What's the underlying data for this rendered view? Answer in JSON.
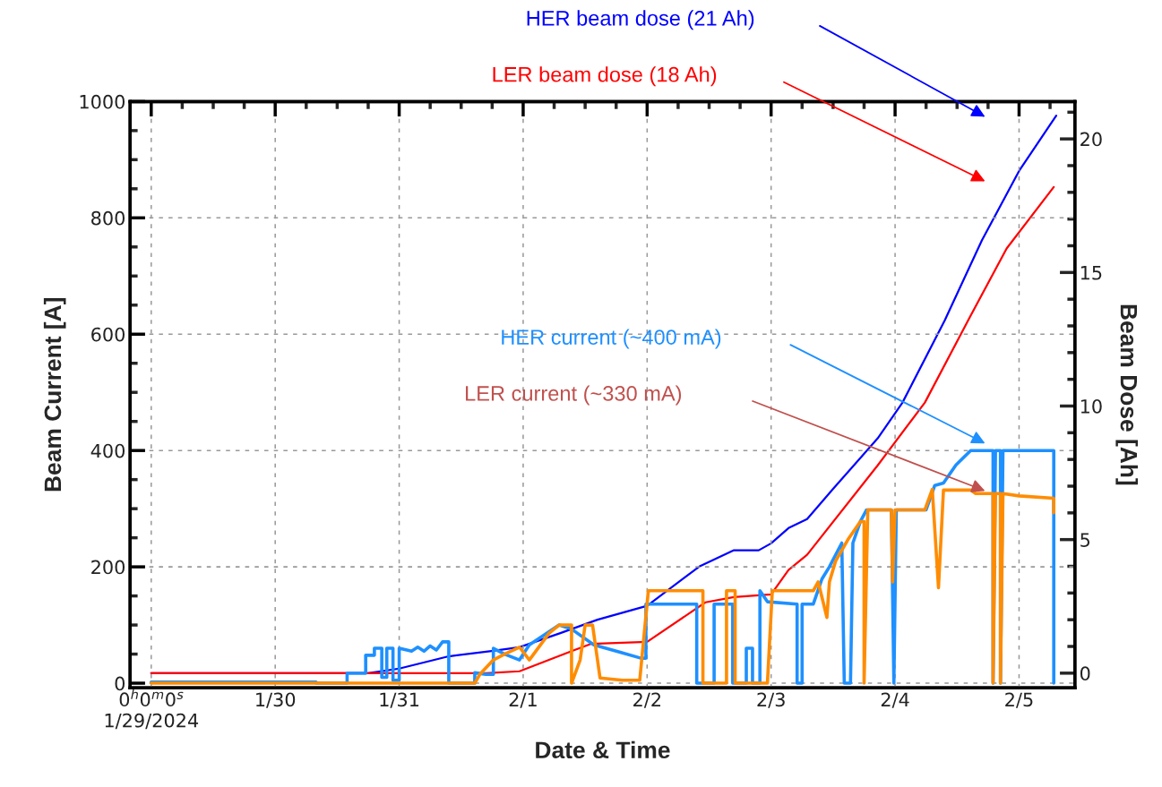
{
  "chart_data": {
    "type": "line",
    "xlabel": "Date & Time",
    "ylabel": "Beam Current [A]",
    "y2label": "Beam Dose [Ah]",
    "xlim": [
      "2024-01-28T19:55",
      "2024-02-05T10:48"
    ],
    "ylim": [
      -8,
      1000
    ],
    "y2lim": [
      -0.55,
      21.4
    ],
    "xticks": [
      {
        "value": "2024-01-29",
        "label": "0$^{h}$0$^{m}$0$^{s}$\n1/29/2024"
      },
      {
        "value": "2024-01-30",
        "label": "1/30"
      },
      {
        "value": "2024-01-31",
        "label": "1/31"
      },
      {
        "value": "2024-02-01",
        "label": "2/1"
      },
      {
        "value": "2024-02-02",
        "label": "2/2"
      },
      {
        "value": "2024-02-03",
        "label": "2/3"
      },
      {
        "value": "2024-02-04",
        "label": "2/4"
      },
      {
        "value": "2024-02-05",
        "label": "2/5"
      }
    ],
    "yticks": [
      0,
      200,
      400,
      600,
      800,
      1000
    ],
    "y2ticks": [
      0,
      5,
      10,
      15,
      20
    ],
    "grid": true,
    "series": [
      {
        "color": "#0000ff",
        "axis": "y2",
        "x": [
          "2024-01-29T00:00",
          "2024-01-30T18:00",
          "2024-01-31T00:00",
          "2024-01-31T09:36",
          "2024-01-31T18:14",
          "2024-01-31T23:17",
          "2024-02-01T07:12",
          "2024-02-01T14:24",
          "2024-02-02T00:00",
          "2024-02-02T10:05",
          "2024-02-02T16:48",
          "2024-02-02T21:36",
          "2024-02-03T00:00",
          "2024-02-03T03:22",
          "2024-02-03T06:58",
          "2024-02-03T12:00",
          "2024-02-03T20:38",
          "2024-02-04T01:26",
          "2024-02-04T09:36",
          "2024-02-04T16:48",
          "2024-02-05T00:00",
          "2024-02-05T07:12"
        ],
        "values": [
          0,
          0,
          0.17,
          0.63,
          0.84,
          0.97,
          1.5,
          2.0,
          2.52,
          3.99,
          4.6,
          4.6,
          4.86,
          5.43,
          5.77,
          6.9,
          8.79,
          10.13,
          13.2,
          16.2,
          18.8,
          20.87
        ]
      },
      {
        "color": "#ff0000",
        "axis": "y2",
        "x": [
          "2024-01-29T00:00",
          "2024-01-31T16:48",
          "2024-01-31T23:17",
          "2024-02-01T09:36",
          "2024-02-01T13:12",
          "2024-02-02T00:00",
          "2024-02-02T11:17",
          "2024-02-02T16:48",
          "2024-02-03T00:00",
          "2024-02-03T03:22",
          "2024-02-03T06:58",
          "2024-02-03T20:38",
          "2024-02-04T05:46",
          "2024-02-04T14:24",
          "2024-02-04T21:36",
          "2024-02-05T06:43"
        ],
        "values": [
          0,
          0,
          0.07,
          0.84,
          1.1,
          1.17,
          2.65,
          2.85,
          2.95,
          3.86,
          4.43,
          7.78,
          10.13,
          13.3,
          15.9,
          18.2
        ]
      },
      {
        "color": "#1e90ff",
        "x": [
          "2024-01-29T00:00",
          "2024-01-30T07:55",
          "2024-01-30T07:55",
          "2024-01-30T13:55",
          "2024-01-30T13:55",
          "2024-01-30T17:31",
          "2024-01-30T17:31",
          "2024-01-30T19:12",
          "2024-01-30T19:12",
          "2024-01-30T20:38",
          "2024-01-30T20:38",
          "2024-01-30T21:36",
          "2024-01-30T21:36",
          "2024-01-30T22:48",
          "2024-01-30T22:48",
          "2024-01-31T00:00",
          "2024-01-31T00:00",
          "2024-01-31T02:24",
          "2024-01-31T03:36",
          "2024-01-31T04:48",
          "2024-01-31T06:00",
          "2024-01-31T07:12",
          "2024-01-31T08:24",
          "2024-01-31T09:36",
          "2024-01-31T09:36",
          "2024-01-31T14:38",
          "2024-01-31T14:38",
          "2024-01-31T16:48",
          "2024-01-31T18:14",
          "2024-01-31T18:14",
          "2024-01-31T20:24",
          "2024-01-31T23:17",
          "2024-02-01T01:12",
          "2024-02-01T06:58",
          "2024-02-01T09:22",
          "2024-02-01T13:41",
          "2024-02-01T18:29",
          "2024-02-01T22:48",
          "2024-02-01T23:46",
          "2024-02-01T23:46",
          "2024-02-02T09:36",
          "2024-02-02T09:36",
          "2024-02-02T12:58",
          "2024-02-02T12:58",
          "2024-02-02T16:34",
          "2024-02-02T16:34",
          "2024-02-02T19:12",
          "2024-02-02T19:12",
          "2024-02-02T20:24",
          "2024-02-02T20:24",
          "2024-02-02T21:50",
          "2024-02-02T21:50",
          "2024-02-02T23:17",
          "2024-02-03T05:02",
          "2024-02-03T05:02",
          "2024-02-03T06:00",
          "2024-02-03T06:00",
          "2024-02-03T08:10",
          "2024-02-03T09:50",
          "2024-02-03T11:17",
          "2024-02-03T13:41",
          "2024-02-03T14:10",
          "2024-02-03T15:22",
          "2024-02-03T15:50",
          "2024-02-03T17:17",
          "2024-02-03T18:29",
          "2024-02-03T23:17",
          "2024-02-03T23:46",
          "2024-02-04T00:14",
          "2024-02-04T06:00",
          "2024-02-04T07:41",
          "2024-02-04T09:22",
          "2024-02-04T11:46",
          "2024-02-04T14:38",
          "2024-02-04T18:58",
          "2024-02-04T18:58",
          "2024-02-04T19:26",
          "2024-02-04T20:24",
          "2024-02-04T20:24",
          "2024-02-04T20:53",
          "2024-02-05T06:43",
          "2024-02-05T06:43"
        ],
        "values": [
          2,
          2,
          0,
          0,
          17,
          17,
          48,
          48,
          60,
          60,
          10,
          10,
          60,
          60,
          5,
          5,
          60,
          55,
          62,
          55,
          64,
          57,
          71,
          71,
          0,
          0,
          18,
          15,
          15,
          60,
          50,
          40,
          66,
          100,
          93,
          66,
          54,
          43,
          43,
          136,
          136,
          0,
          0,
          136,
          136,
          0,
          0,
          60,
          60,
          0,
          0,
          159,
          140,
          136,
          0,
          0,
          136,
          136,
          179,
          200,
          241,
          0,
          0,
          241,
          278,
          298,
          298,
          0,
          298,
          298,
          340,
          344,
          375,
          400,
          400,
          0,
          400,
          400,
          0,
          400,
          400,
          0
        ]
      },
      {
        "color": "#ff8c00",
        "x": [
          "2024-01-29T00:00",
          "2024-01-31T14:38",
          "2024-01-31T15:36",
          "2024-01-31T18:14",
          "2024-01-31T20:24",
          "2024-01-31T23:17",
          "2024-02-01T01:12",
          "2024-02-01T05:02",
          "2024-02-01T06:58",
          "2024-02-01T09:22",
          "2024-02-01T09:22",
          "2024-02-01T11:02",
          "2024-02-01T12:00",
          "2024-02-01T13:26",
          "2024-02-01T14:53",
          "2024-02-01T19:12",
          "2024-02-01T22:34",
          "2024-02-02T00:14",
          "2024-02-02T10:48",
          "2024-02-02T10:48",
          "2024-02-02T15:22",
          "2024-02-02T15:22",
          "2024-02-02T17:02",
          "2024-02-02T17:02",
          "2024-02-02T23:17",
          "2024-02-03T00:14",
          "2024-02-03T08:10",
          "2024-02-03T09:07",
          "2024-02-03T10:48",
          "2024-02-03T11:17",
          "2024-02-03T12:29",
          "2024-02-03T14:53",
          "2024-02-03T17:17",
          "2024-02-03T18:00",
          "2024-02-03T18:00",
          "2024-02-03T18:43",
          "2024-02-03T23:17",
          "2024-02-03T23:31",
          "2024-02-04T00:00",
          "2024-02-04T05:46",
          "2024-02-04T07:12",
          "2024-02-04T08:24",
          "2024-02-04T09:22",
          "2024-02-04T14:38",
          "2024-02-04T15:36",
          "2024-02-04T18:58",
          "2024-02-04T18:58",
          "2024-02-04T19:26",
          "2024-02-04T20:24",
          "2024-02-04T20:24",
          "2024-02-04T20:53",
          "2024-02-05T00:00",
          "2024-02-05T06:43",
          "2024-02-05T06:43"
        ],
        "values": [
          0,
          0,
          15,
          40,
          50,
          62,
          40,
          86,
          100,
          100,
          0,
          40,
          100,
          100,
          9,
          5,
          5,
          159,
          159,
          0,
          0,
          159,
          159,
          0,
          0,
          159,
          159,
          174,
          113,
          174,
          210,
          247,
          278,
          278,
          0,
          298,
          298,
          174,
          298,
          298,
          333,
          164,
          332,
          332,
          326,
          326,
          0,
          326,
          326,
          0,
          326,
          322,
          318,
          293
        ]
      }
    ],
    "annotations": [
      "HER beam dose (21 Ah)",
      "LER beam dose (18 Ah)",
      "HER current (~400 mA)",
      "LER current (~330 mA)"
    ]
  }
}
